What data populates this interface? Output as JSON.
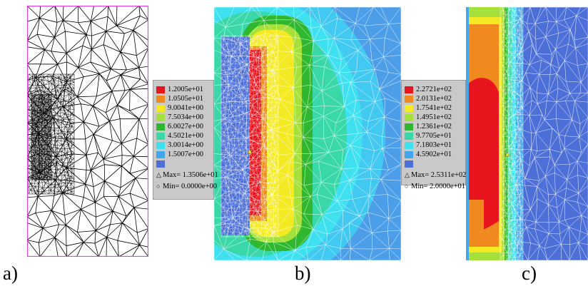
{
  "panels": {
    "a": {
      "label": "a)"
    },
    "b": {
      "label": "b)"
    },
    "c": {
      "label": "c)"
    }
  },
  "legend_b": {
    "entries": [
      {
        "value": "1.2005e+01",
        "color": "#e8141e"
      },
      {
        "value": "1.0505e+01",
        "color": "#f08a1e"
      },
      {
        "value": "9.0041e+00",
        "color": "#f4ea23"
      },
      {
        "value": "7.5034e+00",
        "color": "#a6e03a"
      },
      {
        "value": "6.0027e+00",
        "color": "#2fb82f"
      },
      {
        "value": "4.5021e+00",
        "color": "#3ad8a8"
      },
      {
        "value": "3.0014e+00",
        "color": "#3fe0f0"
      },
      {
        "value": "1.5007e+00",
        "color": "#42a6ee"
      },
      {
        "value": "",
        "color": "#4c6fd8"
      }
    ],
    "max": "Max= 1.3506e+01",
    "min": "Min= 0.0000e+00"
  },
  "legend_c": {
    "entries": [
      {
        "value": "2.2721e+02",
        "color": "#e8141e"
      },
      {
        "value": "2.0131e+02",
        "color": "#f08a1e"
      },
      {
        "value": "1.7541e+02",
        "color": "#f4ea23"
      },
      {
        "value": "1.4951e+02",
        "color": "#a6e03a"
      },
      {
        "value": "1.2361e+02",
        "color": "#2fb82f"
      },
      {
        "value": "9.7705e+01",
        "color": "#3ad8a8"
      },
      {
        "value": "7.1803e+01",
        "color": "#3fe0f0"
      },
      {
        "value": "4.5902e+01",
        "color": "#42a6ee"
      },
      {
        "value": "",
        "color": "#4c6fd8"
      }
    ],
    "max": "Max= 2.5311e+02",
    "min": "Min= 2.0000e+01"
  }
}
